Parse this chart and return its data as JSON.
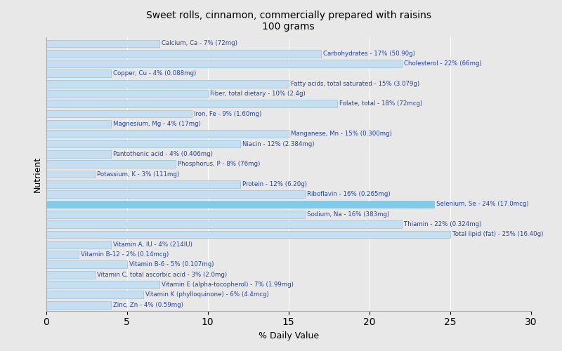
{
  "title": "Sweet rolls, cinnamon, commercially prepared with raisins\n100 grams",
  "xlabel": "% Daily Value",
  "ylabel": "Nutrient",
  "xlim": [
    0,
    30
  ],
  "background_color": "#e8e8e8",
  "bar_color": "#c5dff0",
  "bar_edge_color": "#8ab8d8",
  "text_color": "#2244aa",
  "nutrients": [
    {
      "label": "Calcium, Ca - 7% (72mg)",
      "value": 7
    },
    {
      "label": "Carbohydrates - 17% (50.90g)",
      "value": 17
    },
    {
      "label": "Cholesterol - 22% (66mg)",
      "value": 22
    },
    {
      "label": "Copper, Cu - 4% (0.088mg)",
      "value": 4
    },
    {
      "label": "Fatty acids, total saturated - 15% (3.079g)",
      "value": 15
    },
    {
      "label": "Fiber, total dietary - 10% (2.4g)",
      "value": 10
    },
    {
      "label": "Folate, total - 18% (72mcg)",
      "value": 18
    },
    {
      "label": "Iron, Fe - 9% (1.60mg)",
      "value": 9
    },
    {
      "label": "Magnesium, Mg - 4% (17mg)",
      "value": 4
    },
    {
      "label": "Manganese, Mn - 15% (0.300mg)",
      "value": 15
    },
    {
      "label": "Niacin - 12% (2.384mg)",
      "value": 12
    },
    {
      "label": "Pantothenic acid - 4% (0.406mg)",
      "value": 4
    },
    {
      "label": "Phosphorus, P - 8% (76mg)",
      "value": 8
    },
    {
      "label": "Potassium, K - 3% (111mg)",
      "value": 3
    },
    {
      "label": "Protein - 12% (6.20g)",
      "value": 12
    },
    {
      "label": "Riboflavin - 16% (0.265mg)",
      "value": 16
    },
    {
      "label": "Selenium, Se - 24% (17.0mcg)",
      "value": 24
    },
    {
      "label": "Sodium, Na - 16% (383mg)",
      "value": 16
    },
    {
      "label": "Thiamin - 22% (0.324mg)",
      "value": 22
    },
    {
      "label": "Total lipid (fat) - 25% (16.40g)",
      "value": 25
    },
    {
      "label": "Vitamin A, IU - 4% (214IU)",
      "value": 4
    },
    {
      "label": "Vitamin B-12 - 2% (0.14mcg)",
      "value": 2
    },
    {
      "label": "Vitamin B-6 - 5% (0.107mg)",
      "value": 5
    },
    {
      "label": "Vitamin C, total ascorbic acid - 3% (2.0mg)",
      "value": 3
    },
    {
      "label": "Vitamin E (alpha-tocopherol) - 7% (1.99mg)",
      "value": 7
    },
    {
      "label": "Vitamin K (phylloquinone) - 6% (4.4mcg)",
      "value": 6
    },
    {
      "label": "Zinc, Zn - 4% (0.59mg)",
      "value": 4
    }
  ],
  "highlight_color": "#7ecbea",
  "highlight_indices": [
    16
  ],
  "xticks": [
    0,
    5,
    10,
    15,
    20,
    25,
    30
  ]
}
